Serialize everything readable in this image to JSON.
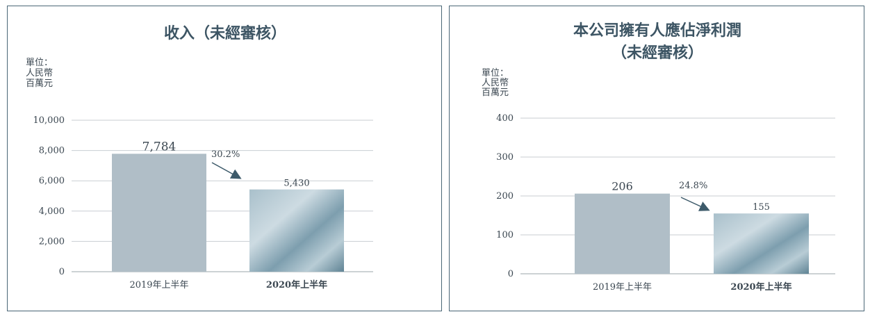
{
  "chart_data": [
    {
      "type": "bar",
      "title": "收入（未經審核）",
      "unit_label": [
        "單位：",
        "人民幣",
        "百萬元"
      ],
      "categories": [
        "2019年上半年",
        "2020年上半年"
      ],
      "values": [
        7784,
        5430
      ],
      "value_labels": [
        "7,784",
        "5,430"
      ],
      "ylim": [
        0,
        10000
      ],
      "yticks": [
        0,
        2000,
        4000,
        6000,
        8000,
        10000
      ],
      "ytick_labels": [
        "0",
        "2,000",
        "4,000",
        "6,000",
        "8,000",
        "10,000"
      ],
      "change_label": "30.2%",
      "grid": true,
      "bar_colors": [
        "#b0bec7",
        "#7f9fae"
      ]
    },
    {
      "type": "bar",
      "title": [
        "本公司擁有人應佔淨利潤",
        "（未經審核）"
      ],
      "unit_label": [
        "單位：",
        "人民幣",
        "百萬元"
      ],
      "categories": [
        "2019年上半年",
        "2020年上半年"
      ],
      "values": [
        206,
        155
      ],
      "value_labels": [
        "206",
        "155"
      ],
      "ylim": [
        0,
        400
      ],
      "yticks": [
        0,
        100,
        200,
        300,
        400
      ],
      "ytick_labels": [
        "0",
        "100",
        "200",
        "300",
        "400"
      ],
      "change_label": "24.8%",
      "grid": true,
      "bar_colors": [
        "#b0bec7",
        "#7f9fae"
      ]
    }
  ]
}
